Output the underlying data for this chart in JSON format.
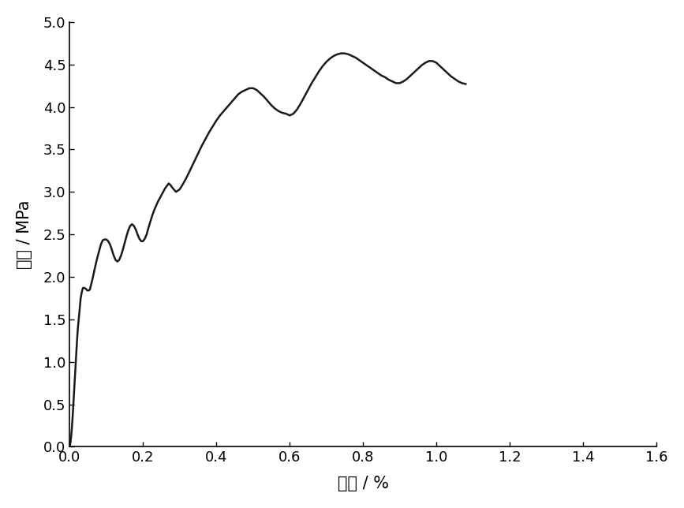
{
  "xlabel": "应变 / %",
  "ylabel": "应力 / MPa",
  "xlim": [
    0.0,
    1.6
  ],
  "ylim": [
    0.0,
    5.0
  ],
  "xticks": [
    0.0,
    0.2,
    0.4,
    0.6,
    0.8,
    1.0,
    1.2,
    1.4,
    1.6
  ],
  "yticks": [
    0.0,
    0.5,
    1.0,
    1.5,
    2.0,
    2.5,
    3.0,
    3.5,
    4.0,
    4.5,
    5.0
  ],
  "line_color": "#1a1a1a",
  "line_width": 1.8,
  "background_color": "#ffffff",
  "curve_x": [
    0.0,
    0.002,
    0.004,
    0.006,
    0.008,
    0.01,
    0.012,
    0.014,
    0.016,
    0.018,
    0.02,
    0.022,
    0.025,
    0.028,
    0.03,
    0.033,
    0.036,
    0.04,
    0.044,
    0.048,
    0.052,
    0.055,
    0.058,
    0.062,
    0.066,
    0.07,
    0.075,
    0.08,
    0.085,
    0.09,
    0.095,
    0.1,
    0.105,
    0.11,
    0.115,
    0.12,
    0.125,
    0.13,
    0.135,
    0.14,
    0.145,
    0.15,
    0.155,
    0.16,
    0.165,
    0.17,
    0.175,
    0.18,
    0.185,
    0.19,
    0.195,
    0.2,
    0.205,
    0.21,
    0.215,
    0.22,
    0.225,
    0.23,
    0.235,
    0.24,
    0.245,
    0.25,
    0.255,
    0.26,
    0.265,
    0.27,
    0.275,
    0.28,
    0.29,
    0.3,
    0.31,
    0.32,
    0.33,
    0.34,
    0.35,
    0.36,
    0.37,
    0.38,
    0.39,
    0.4,
    0.41,
    0.42,
    0.43,
    0.44,
    0.45,
    0.46,
    0.47,
    0.48,
    0.49,
    0.5,
    0.51,
    0.52,
    0.53,
    0.54,
    0.55,
    0.56,
    0.57,
    0.58,
    0.59,
    0.6,
    0.61,
    0.62,
    0.63,
    0.64,
    0.65,
    0.66,
    0.67,
    0.68,
    0.69,
    0.7,
    0.71,
    0.72,
    0.73,
    0.74,
    0.75,
    0.76,
    0.77,
    0.78,
    0.79,
    0.8,
    0.81,
    0.82,
    0.83,
    0.84,
    0.85,
    0.86,
    0.87,
    0.88,
    0.89,
    0.9,
    0.91,
    0.92,
    0.93,
    0.94,
    0.95,
    0.96,
    0.97,
    0.98,
    0.99,
    1.0,
    1.01,
    1.02,
    1.03,
    1.04,
    1.05,
    1.06,
    1.07,
    1.08
  ],
  "curve_y": [
    0.0,
    0.05,
    0.12,
    0.22,
    0.35,
    0.5,
    0.65,
    0.8,
    0.95,
    1.1,
    1.25,
    1.38,
    1.52,
    1.65,
    1.75,
    1.82,
    1.87,
    1.87,
    1.86,
    1.84,
    1.84,
    1.85,
    1.9,
    1.97,
    2.05,
    2.13,
    2.22,
    2.3,
    2.38,
    2.43,
    2.44,
    2.44,
    2.42,
    2.38,
    2.32,
    2.25,
    2.2,
    2.18,
    2.2,
    2.25,
    2.32,
    2.4,
    2.48,
    2.55,
    2.6,
    2.62,
    2.6,
    2.56,
    2.5,
    2.45,
    2.42,
    2.42,
    2.45,
    2.5,
    2.58,
    2.65,
    2.72,
    2.78,
    2.83,
    2.88,
    2.92,
    2.96,
    3.0,
    3.04,
    3.07,
    3.1,
    3.08,
    3.05,
    3.0,
    3.03,
    3.1,
    3.18,
    3.27,
    3.36,
    3.45,
    3.54,
    3.62,
    3.7,
    3.77,
    3.84,
    3.9,
    3.95,
    4.0,
    4.05,
    4.1,
    4.15,
    4.18,
    4.2,
    4.22,
    4.22,
    4.2,
    4.16,
    4.12,
    4.07,
    4.02,
    3.98,
    3.95,
    3.93,
    3.92,
    3.9,
    3.92,
    3.97,
    4.04,
    4.12,
    4.2,
    4.28,
    4.35,
    4.42,
    4.48,
    4.53,
    4.57,
    4.6,
    4.62,
    4.63,
    4.63,
    4.62,
    4.6,
    4.58,
    4.55,
    4.52,
    4.49,
    4.46,
    4.43,
    4.4,
    4.37,
    4.35,
    4.32,
    4.3,
    4.28,
    4.28,
    4.3,
    4.33,
    4.37,
    4.41,
    4.45,
    4.49,
    4.52,
    4.54,
    4.54,
    4.52,
    4.48,
    4.44,
    4.4,
    4.36,
    4.33,
    4.3,
    4.28,
    4.27
  ]
}
